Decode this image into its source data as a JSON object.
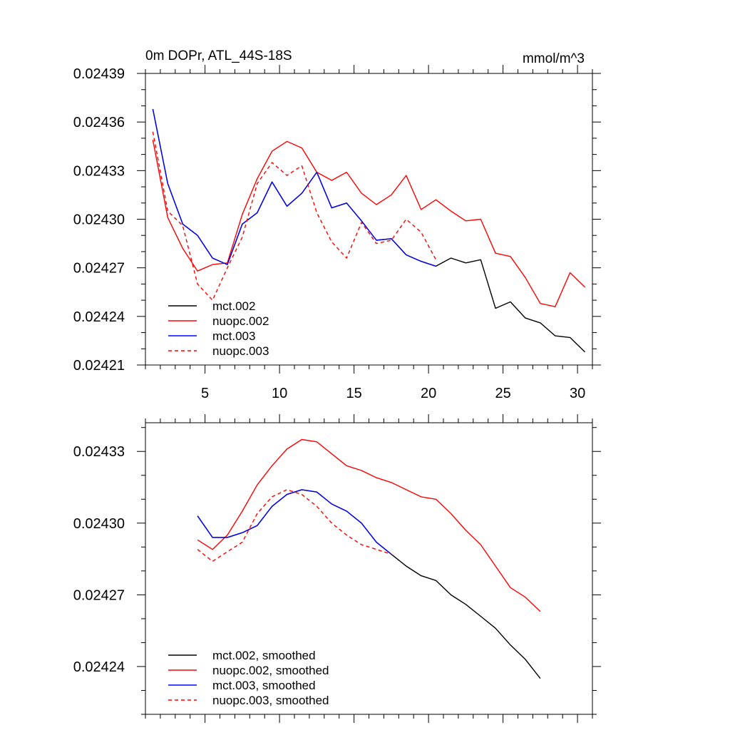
{
  "chart_data": [
    {
      "type": "line",
      "title": "0m DOPr, ATL_44S-18S",
      "units": "mmol/m^3",
      "xlim": [
        1,
        31
      ],
      "ylim": [
        0.02421,
        0.02439
      ],
      "x_ticks": [
        5,
        10,
        15,
        20,
        25,
        30
      ],
      "y_ticks": [
        "0.02421",
        "0.02424",
        "0.02427",
        "0.02430",
        "0.02433",
        "0.02436",
        "0.02439"
      ],
      "legend_position": "bottom-left",
      "series": [
        {
          "name": "mct.002",
          "color": "#000000",
          "dash": "solid",
          "x": [
            1.5,
            2.5,
            3.5,
            4.5,
            5.5,
            6.5,
            7.5,
            8.5,
            9.5,
            10.5,
            11.5,
            12.5,
            13.5,
            14.5,
            15.5,
            16.5,
            17.5,
            18.5,
            19.5,
            20.5,
            21.5,
            22.5,
            23.5,
            24.5,
            25.5,
            26.5,
            27.5,
            28.5,
            29.5,
            30.5
          ],
          "values": [
            0.024368,
            0.024322,
            0.024297,
            0.02429,
            0.024276,
            0.024272,
            0.024297,
            0.024304,
            0.024323,
            0.024308,
            0.024316,
            0.024329,
            0.024307,
            0.02431,
            0.024299,
            0.024287,
            0.024288,
            0.024278,
            0.024274,
            0.024271,
            0.024276,
            0.024273,
            0.024275,
            0.024245,
            0.024249,
            0.024239,
            0.024236,
            0.024228,
            0.024227,
            0.024218
          ]
        },
        {
          "name": "nuopc.002",
          "color": "#ff0000",
          "dash": "solid",
          "x": [
            1.5,
            2.5,
            3.5,
            4.5,
            5.5,
            6.5,
            7.5,
            8.5,
            9.5,
            10.5,
            11.5,
            12.5,
            13.5,
            14.5,
            15.5,
            16.5,
            17.5,
            18.5,
            19.5,
            20.5,
            21.5,
            22.5,
            23.5,
            24.5,
            25.5,
            26.5,
            27.5,
            28.5,
            29.5,
            30.5
          ],
          "values": [
            0.024349,
            0.024301,
            0.024282,
            0.024268,
            0.024272,
            0.024273,
            0.024303,
            0.024325,
            0.024342,
            0.024348,
            0.024344,
            0.024329,
            0.024324,
            0.024329,
            0.024316,
            0.024309,
            0.024315,
            0.024327,
            0.024306,
            0.024312,
            0.024305,
            0.024299,
            0.0243,
            0.024279,
            0.024277,
            0.024264,
            0.024248,
            0.024246,
            0.024267,
            0.024258
          ]
        },
        {
          "name": "mct.003",
          "color": "#0000ff",
          "dash": "solid",
          "x": [
            1.5,
            2.5,
            3.5,
            4.5,
            5.5,
            6.5,
            7.5,
            8.5,
            9.5,
            10.5,
            11.5,
            12.5,
            13.5,
            14.5,
            15.5,
            16.5,
            17.5,
            18.5,
            19.5,
            20.5
          ],
          "values": [
            0.024368,
            0.024322,
            0.024297,
            0.02429,
            0.024276,
            0.024272,
            0.024297,
            0.024304,
            0.024323,
            0.024308,
            0.024316,
            0.024329,
            0.024307,
            0.02431,
            0.024299,
            0.024287,
            0.024288,
            0.024278,
            0.024274,
            0.024271
          ]
        },
        {
          "name": "nuopc.003",
          "color": "#ff0000",
          "dash": "dashed",
          "x": [
            1.5,
            2.5,
            3.5,
            4.5,
            5.5,
            6.5,
            7.5,
            8.5,
            9.5,
            10.5,
            11.5,
            12.5,
            13.5,
            14.5,
            15.5,
            16.5,
            17.5,
            18.5,
            19.5,
            20.5
          ],
          "values": [
            0.024354,
            0.024305,
            0.024296,
            0.02426,
            0.02425,
            0.02427,
            0.024289,
            0.024322,
            0.024335,
            0.024327,
            0.024333,
            0.024304,
            0.024286,
            0.024276,
            0.024298,
            0.024285,
            0.024287,
            0.0243,
            0.024292,
            0.024275
          ]
        }
      ]
    },
    {
      "type": "line",
      "title": "",
      "xlim": [
        1,
        31
      ],
      "ylim": [
        0.02422,
        0.024342
      ],
      "x_ticks": [
        5,
        10,
        15,
        20,
        25,
        30
      ],
      "y_ticks": [
        "0.02424",
        "0.02427",
        "0.02430",
        "0.02433"
      ],
      "legend_position": "bottom-left",
      "series": [
        {
          "name": "mct.002, smoothed",
          "color": "#000000",
          "dash": "solid",
          "x": [
            4.5,
            5.5,
            6.5,
            7.5,
            8.5,
            9.5,
            10.5,
            11.5,
            12.5,
            13.5,
            14.5,
            15.5,
            16.5,
            17.5,
            18.5,
            19.5,
            20.5,
            21.5,
            22.5,
            23.5,
            24.5,
            25.5,
            26.5,
            27.5
          ],
          "values": [
            0.024303,
            0.024294,
            0.024294,
            0.024296,
            0.024299,
            0.024307,
            0.024312,
            0.024314,
            0.024313,
            0.024308,
            0.024305,
            0.0243,
            0.024292,
            0.024287,
            0.024282,
            0.024278,
            0.024276,
            0.02427,
            0.024266,
            0.024261,
            0.024256,
            0.024249,
            0.024243,
            0.024235
          ]
        },
        {
          "name": "nuopc.002, smoothed",
          "color": "#ff0000",
          "dash": "solid",
          "x": [
            4.5,
            5.5,
            6.5,
            7.5,
            8.5,
            9.5,
            10.5,
            11.5,
            12.5,
            13.5,
            14.5,
            15.5,
            16.5,
            17.5,
            18.5,
            19.5,
            20.5,
            21.5,
            22.5,
            23.5,
            24.5,
            25.5,
            26.5,
            27.5
          ],
          "values": [
            0.024293,
            0.024289,
            0.024295,
            0.024305,
            0.024316,
            0.024324,
            0.024331,
            0.024335,
            0.024334,
            0.024329,
            0.024324,
            0.024322,
            0.024319,
            0.024317,
            0.024314,
            0.024311,
            0.02431,
            0.024304,
            0.024297,
            0.024291,
            0.024282,
            0.024273,
            0.024269,
            0.024263
          ]
        },
        {
          "name": "mct.003, smoothed",
          "color": "#0000ff",
          "dash": "solid",
          "x": [
            4.5,
            5.5,
            6.5,
            7.5,
            8.5,
            9.5,
            10.5,
            11.5,
            12.5,
            13.5,
            14.5,
            15.5,
            16.5,
            17.5
          ],
          "values": [
            0.024303,
            0.024294,
            0.024294,
            0.024296,
            0.024299,
            0.024307,
            0.024312,
            0.024314,
            0.024313,
            0.024308,
            0.024305,
            0.0243,
            0.024292,
            0.024287
          ]
        },
        {
          "name": "nuopc.003, smoothed",
          "color": "#ff0000",
          "dash": "dashed",
          "x": [
            4.5,
            5.5,
            6.5,
            7.5,
            8.5,
            9.5,
            10.5,
            11.5,
            12.5,
            13.5,
            14.5,
            15.5,
            16.5,
            17.5
          ],
          "values": [
            0.024289,
            0.024284,
            0.024288,
            0.024292,
            0.024304,
            0.024311,
            0.024314,
            0.024312,
            0.024307,
            0.0243,
            0.024295,
            0.024291,
            0.024289,
            0.024287
          ]
        }
      ]
    }
  ]
}
